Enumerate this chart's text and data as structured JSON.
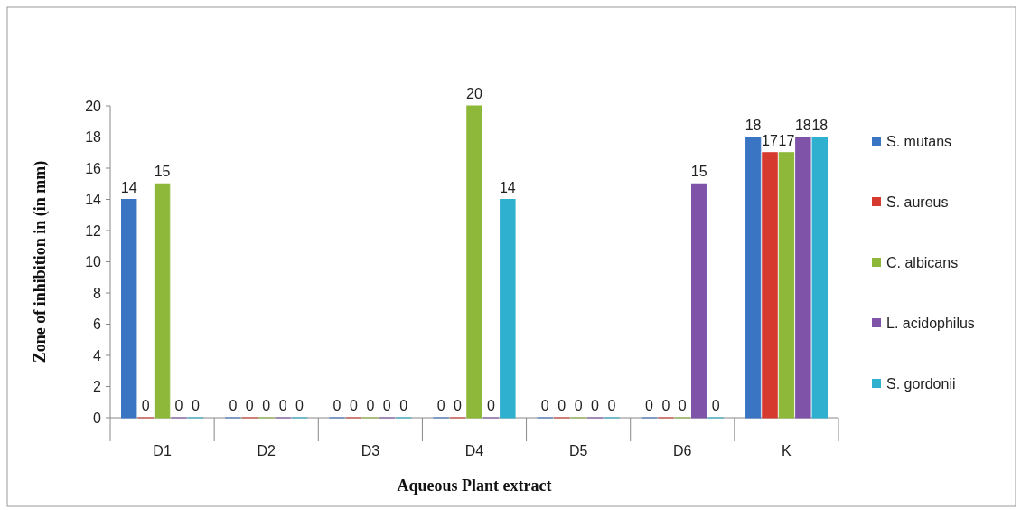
{
  "chart_data": {
    "type": "bar",
    "xlabel": "Aqueous Plant extract",
    "ylabel": "Zone of inhibition  in (in mm)",
    "categories": [
      "D1",
      "D2",
      "D3",
      "D4",
      "D5",
      "D6",
      "K"
    ],
    "series": [
      {
        "name": "S. mutans",
        "color": "#3a75c4",
        "values": [
          14,
          0,
          0,
          0,
          0,
          0,
          18
        ]
      },
      {
        "name": "S. aureus",
        "color": "#d63a2f",
        "values": [
          0,
          0,
          0,
          0,
          0,
          0,
          17
        ]
      },
      {
        "name": "C. albicans",
        "color": "#8db83a",
        "values": [
          15,
          0,
          0,
          20,
          0,
          0,
          17
        ]
      },
      {
        "name": "L. acidophilus",
        "color": "#7f54a8",
        "values": [
          0,
          0,
          0,
          0,
          0,
          15,
          18
        ]
      },
      {
        "name": "S. gordonii",
        "color": "#2fb0cf",
        "values": [
          0,
          0,
          0,
          14,
          0,
          0,
          18
        ]
      }
    ],
    "ylim": [
      0,
      20
    ],
    "yticks": [
      0,
      2,
      4,
      6,
      8,
      10,
      12,
      14,
      16,
      18,
      20
    ],
    "data_labels": true,
    "legend": "right",
    "grid": false
  }
}
